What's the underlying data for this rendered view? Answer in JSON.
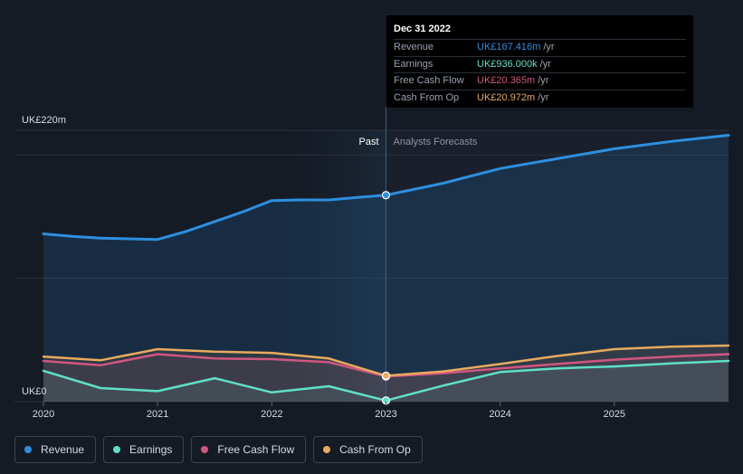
{
  "tooltip": {
    "date": "Dec 31 2022",
    "rows": [
      {
        "label": "Revenue",
        "value": "UK£167.416m",
        "unit": "/yr",
        "color": "#2d8fe0"
      },
      {
        "label": "Earnings",
        "value": "UK£936.000k",
        "unit": "/yr",
        "color": "#5fe0c6"
      },
      {
        "label": "Free Cash Flow",
        "value": "UK£20.365m",
        "unit": "/yr",
        "color": "#d0567f"
      },
      {
        "label": "Cash From Op",
        "value": "UK£20.972m",
        "unit": "/yr",
        "color": "#e8aa5d"
      }
    ]
  },
  "chart_data": {
    "type": "area",
    "y_top_label": "UK£220m",
    "y_bottom_label": "UK£0",
    "ylim": [
      0,
      220
    ],
    "xlim": [
      2020.0,
      2026.0
    ],
    "x_ticks": [
      "2020",
      "2021",
      "2022",
      "2023",
      "2024",
      "2025"
    ],
    "past_label": "Past",
    "forecast_label": "Analysts Forecasts",
    "divider_x": 2023.0,
    "series": [
      {
        "name": "Revenue",
        "color": "#2d8fe0",
        "points": [
          [
            2020.0,
            136
          ],
          [
            2020.25,
            134
          ],
          [
            2020.5,
            132.5
          ],
          [
            2020.75,
            132
          ],
          [
            2021.0,
            131.5
          ],
          [
            2021.25,
            138
          ],
          [
            2021.5,
            146
          ],
          [
            2021.75,
            154
          ],
          [
            2022.0,
            163
          ],
          [
            2022.25,
            163.5
          ],
          [
            2022.5,
            163.5
          ],
          [
            2022.75,
            165.5
          ],
          [
            2023.0,
            167.4
          ],
          [
            2023.5,
            177
          ],
          [
            2024.0,
            189
          ],
          [
            2024.5,
            197
          ],
          [
            2025.0,
            205
          ],
          [
            2025.5,
            211
          ],
          [
            2026.0,
            216
          ]
        ]
      },
      {
        "name": "Earnings",
        "color": "#5fe0c6",
        "points": [
          [
            2020.0,
            25
          ],
          [
            2020.5,
            11
          ],
          [
            2021.0,
            8.5
          ],
          [
            2021.5,
            19
          ],
          [
            2022.0,
            7.5
          ],
          [
            2022.5,
            12.5
          ],
          [
            2023.0,
            0.9
          ],
          [
            2023.5,
            13
          ],
          [
            2024.0,
            24
          ],
          [
            2024.5,
            27
          ],
          [
            2025.0,
            28.5
          ],
          [
            2025.5,
            31
          ],
          [
            2026.0,
            33
          ]
        ]
      },
      {
        "name": "Free Cash Flow",
        "color": "#d0567f",
        "points": [
          [
            2020.0,
            33
          ],
          [
            2020.5,
            29.5
          ],
          [
            2021.0,
            38.5
          ],
          [
            2021.5,
            35
          ],
          [
            2022.0,
            34.5
          ],
          [
            2022.5,
            32
          ],
          [
            2023.0,
            20.4
          ],
          [
            2023.5,
            23
          ],
          [
            2024.0,
            27
          ],
          [
            2024.5,
            30.5
          ],
          [
            2025.0,
            34
          ],
          [
            2025.5,
            36.5
          ],
          [
            2026.0,
            38.5
          ]
        ]
      },
      {
        "name": "Cash From Op",
        "color": "#e8aa5d",
        "points": [
          [
            2020.0,
            36.5
          ],
          [
            2020.5,
            33.5
          ],
          [
            2021.0,
            42.5
          ],
          [
            2021.5,
            40.5
          ],
          [
            2022.0,
            39.5
          ],
          [
            2022.5,
            35
          ],
          [
            2023.0,
            21
          ],
          [
            2023.5,
            24.5
          ],
          [
            2024.0,
            30.5
          ],
          [
            2024.5,
            37
          ],
          [
            2025.0,
            42.5
          ],
          [
            2025.5,
            44.5
          ],
          [
            2026.0,
            45.5
          ]
        ]
      }
    ]
  },
  "legend": {
    "items": [
      {
        "label": "Revenue",
        "color": "#2d8fe0"
      },
      {
        "label": "Earnings",
        "color": "#5fe0c6"
      },
      {
        "label": "Free Cash Flow",
        "color": "#d0567f"
      },
      {
        "label": "Cash From Op",
        "color": "#e8aa5d"
      }
    ]
  }
}
